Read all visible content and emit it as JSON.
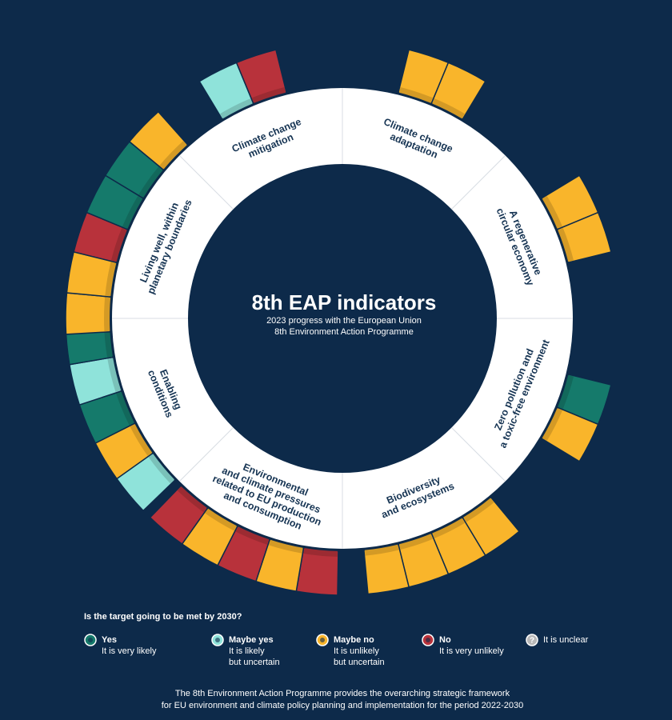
{
  "title": "8th EAP indicators",
  "subtitle": [
    "2023 progress with the European Union",
    "8th Environment Action Programme"
  ],
  "sectors": [
    {
      "label": [
        "Climate change",
        "adaptation"
      ],
      "indicators": [
        2,
        2
      ]
    },
    {
      "label": [
        "A regenerative",
        "circular economy"
      ],
      "indicators": [
        2,
        2
      ]
    },
    {
      "label": [
        "Zero pollution and",
        "a toxic-free environment"
      ],
      "indicators": [
        0,
        2
      ]
    },
    {
      "label": [
        "Biodiversity",
        "and ecosystems"
      ],
      "indicators": [
        2,
        2,
        2,
        2
      ]
    },
    {
      "label": [
        "Environmental",
        "and climate pressures",
        "related to EU production",
        "and consumption"
      ],
      "indicators": [
        3,
        2,
        3,
        2,
        3
      ]
    },
    {
      "label": [
        "Enabling",
        "conditions"
      ],
      "indicators": [
        1,
        2,
        0,
        1,
        0
      ]
    },
    {
      "label": [
        "Living well, within",
        "planetary boundaries"
      ],
      "indicators": [
        2,
        2,
        3,
        0,
        0,
        2
      ]
    },
    {
      "label": [
        "Climate change",
        "mitigation"
      ],
      "indicators": [
        1,
        3
      ]
    }
  ],
  "legend": {
    "question": "Is the target going to be met by 2030?",
    "items": [
      {
        "label": "Yes",
        "description": [
          "It is very likely"
        ],
        "color": "#157a6b"
      },
      {
        "label": "Maybe yes",
        "description": [
          "It is likely",
          "but uncertain"
        ],
        "color": "#8fe3da"
      },
      {
        "label": "Maybe no",
        "description": [
          "It is unlikely",
          "but uncertain"
        ],
        "color": "#f9b52b"
      },
      {
        "label": "No",
        "description": [
          "It is very unlikely"
        ],
        "color": "#b8323b"
      },
      {
        "icon": "?",
        "description": [
          "It is unclear"
        ],
        "color": "#b8b8b8"
      }
    ]
  },
  "footer": [
    "The 8th Environment Action Programme provides the overarching strategic framework",
    "for EU environment and climate policy planning and implementation for the period 2022-2030"
  ]
}
